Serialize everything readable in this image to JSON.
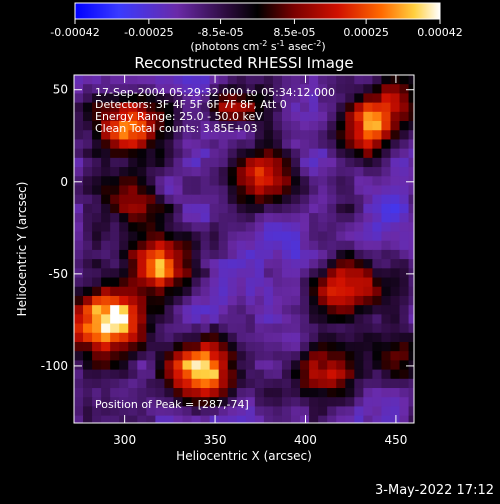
{
  "colorbar": {
    "ticks": [
      "-0.00042",
      "-0.00025",
      "-8.5e-05",
      "8.5e-05",
      "0.00025",
      "0.00042"
    ],
    "values": [
      -0.00042,
      -0.00025,
      -8.5e-05,
      8.5e-05,
      0.00025,
      0.00042
    ],
    "range": [
      -0.00042,
      0.00042
    ],
    "unit_prefix": "(photons cm",
    "unit_sup1": "-2",
    "unit_mid": " s",
    "unit_sup2": "-1",
    "unit_suffix": " asec",
    "unit_sup3": "-2",
    "unit_close": ")"
  },
  "plot": {
    "title": "Reconstructed RHESSI Image",
    "annotations": [
      "17-Sep-2004 05:29:32.000 to 05:34:12.000",
      "Detectors: 3F 4F 5F 6F 7F 8F, Att 0",
      "Energy Range: 25.0 - 50.0 keV",
      "Clean     Total counts: 3.85E+03"
    ],
    "peak_label": "Position of Peak = [287,-74]",
    "date": "3-May-2022 17:12"
  },
  "chart_data": {
    "type": "heatmap",
    "title": "Reconstructed RHESSI Image",
    "xlabel": "Heliocentric X (arcsec)",
    "ylabel": "Heliocentric Y (arcsec)",
    "xlim": [
      272,
      460
    ],
    "ylim": [
      -131,
      58
    ],
    "xticks": [
      300,
      350,
      400,
      450
    ],
    "yticks": [
      50,
      0,
      -50,
      -100
    ],
    "colorscale": [
      "#0000ff",
      "#2020ff",
      "#6a2aa8",
      "#4a1a6a",
      "#000000",
      "#7a0000",
      "#d01000",
      "#ff6a00",
      "#ffd040",
      "#ffffff"
    ],
    "peak": [
      287,
      -74
    ],
    "bright_regions": [
      {
        "x": 287,
        "y": -74,
        "level": 1.0
      },
      {
        "x": 340,
        "y": -100,
        "level": 0.85
      },
      {
        "x": 318,
        "y": -42,
        "level": 0.8
      },
      {
        "x": 300,
        "y": 32,
        "level": 0.7
      },
      {
        "x": 375,
        "y": 5,
        "level": 0.65
      },
      {
        "x": 430,
        "y": 30,
        "level": 0.55
      },
      {
        "x": 420,
        "y": -55,
        "level": 0.6
      },
      {
        "x": 408,
        "y": -100,
        "level": 0.45
      },
      {
        "x": 300,
        "y": -5,
        "level": 0.45
      },
      {
        "x": 445,
        "y": 45,
        "level": 0.4
      },
      {
        "x": 450,
        "y": -95,
        "level": 0.35
      },
      {
        "x": 360,
        "y": 45,
        "level": 0.35
      }
    ]
  }
}
